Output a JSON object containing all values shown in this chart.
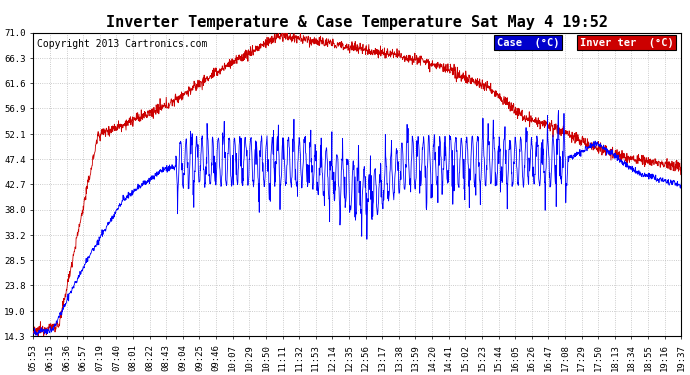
{
  "title": "Inverter Temperature & Case Temperature Sat May 4 19:52",
  "copyright": "Copyright 2013 Cartronics.com",
  "background_color": "#ffffff",
  "plot_bg_color": "#ffffff",
  "grid_color": "#bbbbbb",
  "yticks": [
    14.3,
    19.0,
    23.8,
    28.5,
    33.2,
    38.0,
    42.7,
    47.4,
    52.1,
    56.9,
    61.6,
    66.3,
    71.0
  ],
  "ymin": 14.3,
  "ymax": 71.0,
  "case_color": "#0000ff",
  "inverter_color": "#cc0000",
  "legend_case_bg": "#0000cc",
  "legend_inverter_bg": "#cc0000",
  "legend_text_color": "#ffffff",
  "xtick_labels": [
    "05:53",
    "06:15",
    "06:36",
    "06:57",
    "07:19",
    "07:40",
    "08:01",
    "08:22",
    "08:43",
    "09:04",
    "09:25",
    "09:46",
    "10:07",
    "10:29",
    "10:50",
    "11:11",
    "11:32",
    "11:53",
    "12:14",
    "12:35",
    "12:56",
    "13:17",
    "13:38",
    "13:59",
    "14:20",
    "14:41",
    "15:02",
    "15:23",
    "15:44",
    "16:05",
    "16:26",
    "16:47",
    "17:08",
    "17:29",
    "17:50",
    "18:13",
    "18:34",
    "18:55",
    "19:16",
    "19:37"
  ],
  "title_fontsize": 11,
  "copyright_fontsize": 7,
  "tick_fontsize": 6.5,
  "legend_fontsize": 7.5
}
